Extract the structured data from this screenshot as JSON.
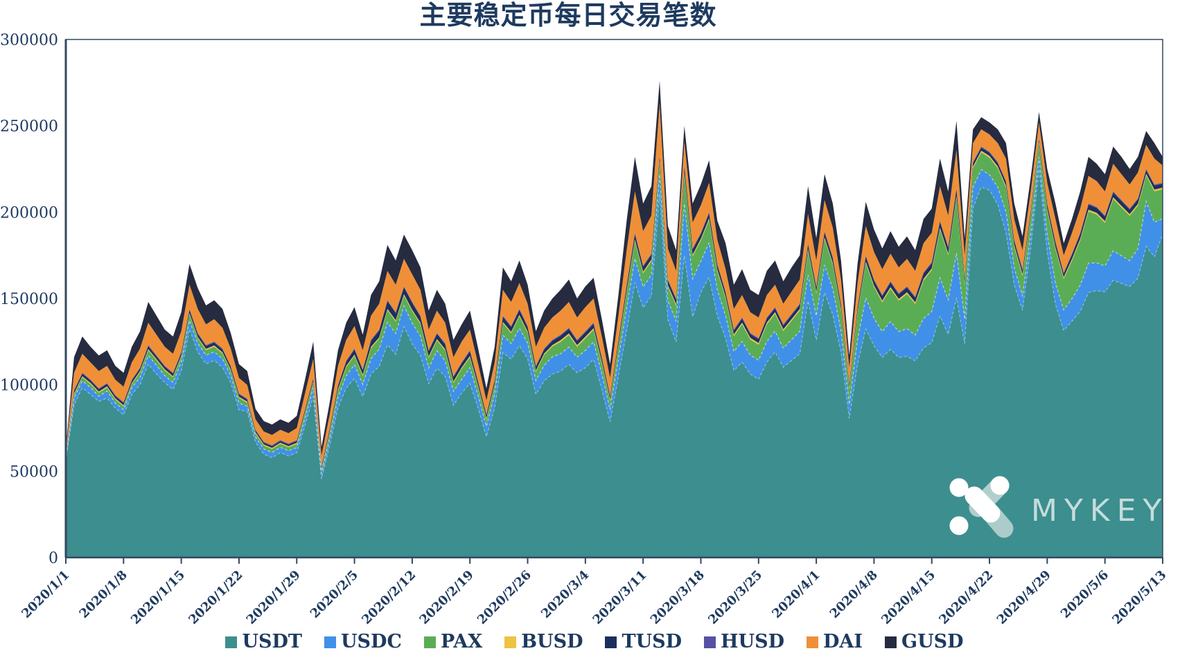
{
  "title": "主要稳定币每日交易笔数",
  "watermark": {
    "text": "MYKEY"
  },
  "colors": {
    "background": "#ffffff",
    "title_text": "#1e3a5f",
    "axis_line": "#33475e",
    "tick_text": "#1e3a5f",
    "watermark_text": "#dfeaea"
  },
  "chart_data": {
    "type": "area",
    "stacked": true,
    "title": "主要稳定币每日交易笔数",
    "xlabel": "",
    "ylabel": "",
    "ylim": [
      0,
      300000
    ],
    "grid": false,
    "legend_position": "bottom",
    "x_start": "2020/1/1",
    "x_end": "2020/5/13",
    "x_days_total": 134,
    "y_tick_labels": [
      "0",
      "50000",
      "100000",
      "150000",
      "200000",
      "250000",
      "300000"
    ],
    "x_tick_labels": [
      "2020/1/1",
      "2020/1/8",
      "2020/1/15",
      "2020/1/22",
      "2020/1/29",
      "2020/2/5",
      "2020/2/12",
      "2020/2/19",
      "2020/2/26",
      "2020/3/4",
      "2020/3/11",
      "2020/3/18",
      "2020/3/25",
      "2020/4/1",
      "2020/4/8",
      "2020/4/15",
      "2020/4/22",
      "2020/4/29",
      "2020/5/6",
      "2020/5/13"
    ],
    "x_tick_days": [
      0,
      7,
      14,
      21,
      28,
      35,
      42,
      49,
      56,
      63,
      70,
      77,
      84,
      91,
      98,
      105,
      112,
      119,
      126,
      133
    ],
    "series": [
      {
        "name": "USDT",
        "color": "#3d8e8e",
        "values": [
          56200,
          88300,
          98300,
          94400,
          90400,
          92400,
          86500,
          82500,
          94300,
          100300,
          112000,
          106200,
          101300,
          97300,
          108100,
          132300,
          119000,
          112100,
          114100,
          110100,
          101300,
          85400,
          84600,
          66800,
          59800,
          57800,
          60800,
          58800,
          60700,
          76500,
          93300,
          45500,
          65200,
          86700,
          98200,
          103700,
          93200,
          106200,
          110700,
          123200,
          117700,
          133700,
          123700,
          117200,
          100700,
          109700,
          104900,
          88200,
          95200,
          100900,
          86500,
          69900,
          86500,
          118700,
          114900,
          122700,
          115100,
          94500,
          102300,
          106200,
          107900,
          111800,
          107000,
          109900,
          114800,
          97200,
          78600,
          105000,
          131400,
          159200,
          144600,
          151600,
          210900,
          137800,
          124800,
          174900,
          139400,
          153600,
          162400,
          139800,
          127000,
          108200,
          113100,
          106200,
          103200,
          113100,
          119100,
          110200,
          114100,
          118000,
          148600,
          125900,
          153400,
          140600,
          119000,
          80600,
          112000,
          132400,
          122600,
          115800,
          120600,
          115800,
          116600,
          113800,
          121400,
          124400,
          139900,
          129200,
          150400,
          123900,
          202400,
          214600,
          212600,
          204500,
          188200,
          157900,
          143200,
          179400,
          224900,
          176900,
          146600,
          131400,
          136900,
          142600,
          153400,
          154600,
          153800,
          160600,
          158700,
          156900,
          161800,
          180200,
          174100,
          187200
        ]
      },
      {
        "name": "USDC",
        "color": "#4190e8",
        "values": [
          1000,
          4000,
          4000,
          4000,
          3000,
          4000,
          3000,
          3000,
          4000,
          4000,
          5000,
          5000,
          4000,
          4000,
          5000,
          5000,
          5000,
          5000,
          5000,
          5000,
          4000,
          4000,
          3000,
          3000,
          3000,
          3000,
          3000,
          3000,
          3000,
          4000,
          5000,
          3000,
          4000,
          6000,
          7000,
          8000,
          7000,
          9000,
          10000,
          13000,
          12000,
          12000,
          12000,
          11000,
          9000,
          10000,
          9000,
          8000,
          8000,
          9000,
          7000,
          6000,
          8000,
          10000,
          9000,
          10000,
          9000,
          8000,
          9000,
          10000,
          10000,
          10000,
          9000,
          10000,
          10000,
          9000,
          7000,
          10000,
          13000,
          14000,
          12000,
          12000,
          11000,
          11000,
          12000,
          30000,
          22000,
          18000,
          20000,
          15000,
          13000,
          11000,
          12000,
          11000,
          11000,
          12000,
          12000,
          11000,
          12000,
          13000,
          15000,
          14000,
          16000,
          15000,
          12000,
          8000,
          14000,
          18000,
          16000,
          15000,
          16000,
          15000,
          16000,
          15000,
          17000,
          18000,
          22000,
          20000,
          26000,
          14000,
          12000,
          10000,
          9000,
          10000,
          12000,
          10000,
          8000,
          8000,
          7000,
          10000,
          12000,
          12000,
          13000,
          15000,
          17000,
          16000,
          15000,
          17000,
          16000,
          15000,
          17000,
          26000,
          20000,
          9000
        ]
      },
      {
        "name": "PAX",
        "color": "#5bad55",
        "values": [
          800,
          2000,
          2000,
          2000,
          2000,
          2000,
          2000,
          2000,
          2000,
          3000,
          3000,
          3000,
          3000,
          3000,
          3000,
          3500,
          3000,
          3000,
          3000,
          3000,
          3000,
          3000,
          2000,
          2000,
          2000,
          2000,
          2000,
          2000,
          2000,
          3000,
          3000,
          2000,
          3000,
          4000,
          5000,
          5000,
          5000,
          6000,
          6000,
          7000,
          7000,
          6000,
          7000,
          7000,
          6000,
          6000,
          6000,
          5000,
          6000,
          6000,
          5000,
          4000,
          5000,
          7000,
          6000,
          7000,
          6000,
          5000,
          6000,
          6000,
          7000,
          7000,
          6000,
          7000,
          7000,
          6000,
          5000,
          7000,
          9000,
          10000,
          8000,
          8000,
          7000,
          8000,
          9000,
          17000,
          13000,
          12000,
          13000,
          11000,
          10000,
          9000,
          10000,
          9000,
          9000,
          10000,
          10000,
          10000,
          11000,
          12000,
          14000,
          13000,
          15000,
          14000,
          12000,
          9000,
          15000,
          20000,
          18000,
          17000,
          19000,
          18000,
          20000,
          18000,
          22000,
          24000,
          28000,
          26000,
          32000,
          20000,
          11000,
          10000,
          10000,
          11000,
          14000,
          12000,
          12000,
          10000,
          8000,
          14000,
          20000,
          18000,
          22000,
          26000,
          30000,
          28000,
          25000,
          30000,
          28000,
          26000,
          25000,
          15000,
          18000,
          17000
        ]
      },
      {
        "name": "BUSD",
        "color": "#eec243",
        "values": [
          400,
          700,
          700,
          700,
          700,
          700,
          700,
          700,
          700,
          700,
          700,
          700,
          700,
          700,
          700,
          700,
          700,
          700,
          700,
          700,
          700,
          700,
          700,
          700,
          700,
          700,
          700,
          700,
          700,
          700,
          700,
          800,
          800,
          800,
          800,
          800,
          800,
          800,
          800,
          800,
          800,
          800,
          800,
          800,
          800,
          800,
          800,
          800,
          800,
          800,
          800,
          800,
          800,
          800,
          800,
          800,
          800,
          800,
          800,
          800,
          1000,
          1000,
          1000,
          1000,
          1000,
          1000,
          1000,
          1000,
          1000,
          1000,
          1000,
          1000,
          1000,
          1000,
          1000,
          1000,
          1000,
          1000,
          1000,
          1000,
          1000,
          1000,
          1000,
          1000,
          1000,
          1000,
          1000,
          1000,
          1000,
          1000,
          1000,
          1000,
          1000,
          1000,
          1000,
          1000,
          1000,
          1000,
          1000,
          1000,
          1000,
          1000,
          1000,
          1000,
          1000,
          1000,
          1000,
          1000,
          1000,
          1000,
          1000,
          1000,
          1000,
          1000,
          1000,
          1000,
          1000,
          1000,
          1000,
          1000,
          1000,
          1000,
          1000,
          1000,
          1000,
          1000,
          1000,
          1000,
          1000,
          1000,
          1000,
          1000,
          1000,
          1000
        ]
      },
      {
        "name": "TUSD",
        "color": "#1b2f5e",
        "values": [
          800,
          1500,
          1500,
          1400,
          1400,
          1400,
          1300,
          1300,
          1500,
          1500,
          1800,
          1600,
          1500,
          1500,
          1700,
          2000,
          1800,
          1700,
          1700,
          1700,
          1500,
          1400,
          1200,
          1000,
          1000,
          1000,
          1000,
          1000,
          1100,
          1300,
          1500,
          1200,
          1500,
          2000,
          2500,
          3000,
          2500,
          3500,
          4000,
          4500,
          4000,
          4000,
          4000,
          3500,
          3000,
          3000,
          2800,
          2500,
          2500,
          2800,
          2200,
          1800,
          2200,
          3000,
          2800,
          3000,
          2600,
          2200,
          2400,
          2500,
          2500,
          2600,
          2400,
          2500,
          2600,
          2200,
          1800,
          2400,
          3000,
          3200,
          2800,
          2800,
          2500,
          2600,
          2600,
          3500,
          3000,
          2800,
          3000,
          2600,
          2400,
          2200,
          2300,
          2200,
          2200,
          2300,
          2300,
          2200,
          2300,
          2400,
          2800,
          2500,
          3000,
          2800,
          2400,
          1800,
          2400,
          3000,
          2800,
          2600,
          2800,
          2600,
          2800,
          2600,
          3000,
          3000,
          3500,
          3200,
          4000,
          2500,
          2000,
          1800,
          1800,
          1900,
          2200,
          2500,
          2200,
          2000,
          1500,
          2500,
          2800,
          2000,
          2500,
          2800,
          3000,
          2800,
          2600,
          2800,
          2700,
          2500,
          2600,
          2200,
          2300,
          2200
        ]
      },
      {
        "name": "HUSD",
        "color": "#5751a5",
        "values": [
          300,
          500,
          500,
          500,
          500,
          500,
          500,
          500,
          500,
          500,
          500,
          500,
          500,
          500,
          500,
          500,
          500,
          500,
          500,
          500,
          500,
          500,
          500,
          500,
          500,
          500,
          500,
          500,
          500,
          500,
          500,
          500,
          500,
          500,
          500,
          500,
          500,
          500,
          500,
          500,
          500,
          500,
          500,
          500,
          500,
          500,
          500,
          500,
          500,
          500,
          500,
          500,
          500,
          500,
          500,
          500,
          500,
          500,
          500,
          500,
          600,
          600,
          600,
          600,
          600,
          600,
          600,
          600,
          600,
          600,
          600,
          600,
          600,
          600,
          600,
          600,
          600,
          600,
          600,
          600,
          600,
          600,
          600,
          600,
          600,
          600,
          600,
          600,
          600,
          600,
          600,
          600,
          600,
          600,
          600,
          600,
          600,
          600,
          600,
          600,
          600,
          600,
          600,
          600,
          600,
          600,
          600,
          600,
          600,
          600,
          600,
          600,
          600,
          600,
          600,
          600,
          600,
          600,
          600,
          600,
          600,
          600,
          600,
          600,
          600,
          600,
          600,
          600,
          600,
          600,
          600,
          600,
          600,
          600
        ]
      },
      {
        "name": "DAI",
        "color": "#ef9038",
        "values": [
          2000,
          10000,
          11000,
          10000,
          10000,
          10000,
          9000,
          9000,
          10000,
          11000,
          13000,
          12000,
          11000,
          11000,
          12000,
          14000,
          14000,
          12000,
          13000,
          12000,
          10000,
          9000,
          8000,
          6000,
          6000,
          6000,
          6000,
          6000,
          7000,
          9000,
          11000,
          6000,
          8000,
          11000,
          12000,
          13000,
          11000,
          14000,
          15000,
          17000,
          16000,
          16000,
          16000,
          15000,
          12000,
          13000,
          12000,
          11000,
          12000,
          12000,
          10000,
          8000,
          10000,
          15000,
          14000,
          15000,
          13000,
          11000,
          12000,
          13000,
          14000,
          15000,
          13000,
          14000,
          14000,
          12000,
          10000,
          14000,
          20000,
          24000,
          20000,
          22000,
          30000,
          18000,
          16000,
          14000,
          15000,
          16000,
          17000,
          14000,
          13000,
          12000,
          13000,
          12000,
          12000,
          13000,
          13000,
          12000,
          13000,
          14000,
          17000,
          15000,
          18000,
          17000,
          14000,
          9000,
          14000,
          17000,
          16000,
          15000,
          16000,
          15000,
          16000,
          15000,
          17000,
          17000,
          20000,
          18000,
          22000,
          13000,
          11000,
          10000,
          10000,
          11000,
          13000,
          12000,
          11000,
          11000,
          9000,
          12000,
          13000,
          10000,
          12000,
          14000,
          16000,
          15000,
          14000,
          16000,
          15000,
          14000,
          15000,
          14000,
          15000,
          10000
        ]
      },
      {
        "name": "GUSD",
        "color": "#262b40",
        "values": [
          1500,
          9000,
          10000,
          9000,
          9000,
          9000,
          8000,
          8000,
          9000,
          10000,
          12000,
          11000,
          10000,
          10000,
          11000,
          12000,
          12000,
          11000,
          11000,
          11000,
          9000,
          8000,
          8000,
          6000,
          6000,
          6000,
          6000,
          6000,
          7000,
          8000,
          10000,
          5000,
          7000,
          9000,
          10000,
          11000,
          9000,
          12000,
          13000,
          15000,
          14000,
          14000,
          14000,
          13000,
          11000,
          12000,
          11000,
          10000,
          10000,
          11000,
          9000,
          7000,
          9000,
          13000,
          12000,
          13000,
          11000,
          9000,
          10000,
          11000,
          12000,
          13000,
          11000,
          12000,
          12000,
          10000,
          8000,
          12000,
          17000,
          20000,
          16000,
          17000,
          13000,
          13000,
          12000,
          9000,
          11000,
          12000,
          13000,
          11000,
          15000,
          14000,
          15000,
          13000,
          13000,
          14000,
          14000,
          13000,
          14000,
          14000,
          16000,
          13000,
          15000,
          14000,
          11000,
          7000,
          11000,
          14000,
          13000,
          12000,
          13000,
          12000,
          13000,
          12000,
          14000,
          14000,
          16000,
          14000,
          17000,
          10000,
          8000,
          7000,
          7000,
          8000,
          9000,
          9000,
          8000,
          8000,
          6000,
          8000,
          9000,
          7000,
          8000,
          10000,
          11000,
          10000,
          10000,
          10000,
          10000,
          9000,
          9000,
          8000,
          9000,
          5000
        ]
      }
    ]
  }
}
